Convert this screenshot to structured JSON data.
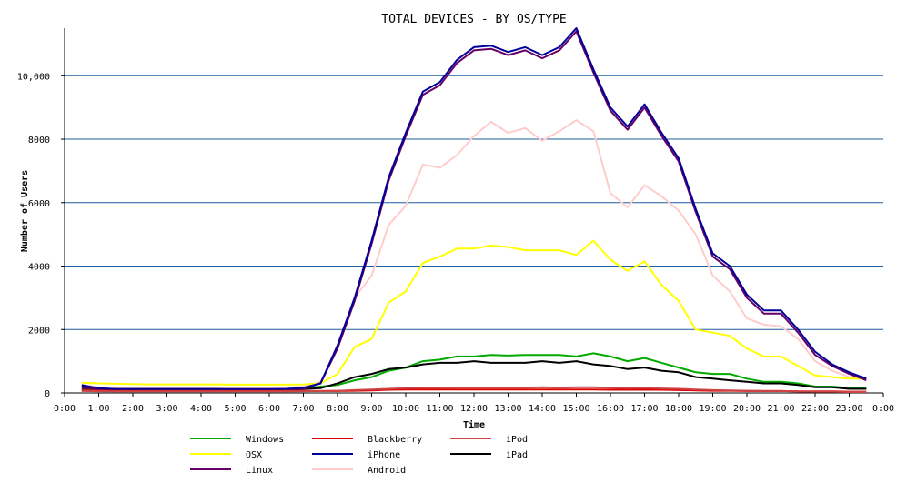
{
  "chart_data": {
    "type": "line",
    "title": "TOTAL DEVICES - BY OS/TYPE",
    "xlabel": "Time",
    "ylabel": "Number of Users",
    "ylim": [
      0,
      11500
    ],
    "y_ticks": [
      0,
      2000,
      4000,
      6000,
      8000,
      10000
    ],
    "y_tick_labels": [
      "0",
      "2000",
      "4000",
      "6000",
      "8000",
      "10,000"
    ],
    "x_tick_labels": [
      "0:00",
      "1:00",
      "2:00",
      "3:00",
      "4:00",
      "5:00",
      "6:00",
      "7:00",
      "8:00",
      "9:00",
      "10:00",
      "11:00",
      "12:00",
      "13:00",
      "14:00",
      "15:00",
      "16:00",
      "17:00",
      "18:00",
      "19:00",
      "20:00",
      "21:00",
      "22:00",
      "23:00",
      "0:00"
    ],
    "xlim": [
      0,
      24
    ],
    "grid": "horizontal",
    "legend_position": "bottom",
    "x": [
      0.5,
      1,
      1.5,
      2,
      2.5,
      3,
      3.5,
      4,
      4.5,
      5,
      5.5,
      6,
      6.5,
      7,
      7.5,
      8,
      8.5,
      9,
      9.5,
      10,
      10.5,
      11,
      11.5,
      12,
      12.5,
      13,
      13.5,
      14,
      14.5,
      15,
      15.5,
      16,
      16.5,
      17,
      17.5,
      18,
      18.5,
      19,
      19.5,
      20,
      20.5,
      21,
      21.5,
      22,
      22.5,
      23,
      23.5
    ],
    "series": [
      {
        "name": "Windows",
        "color": "#00aa00",
        "values": [
          100,
          90,
          80,
          80,
          80,
          80,
          90,
          90,
          90,
          90,
          90,
          100,
          100,
          120,
          200,
          250,
          400,
          500,
          700,
          800,
          1000,
          1050,
          1150,
          1150,
          1200,
          1180,
          1200,
          1200,
          1200,
          1150,
          1250,
          1150,
          1000,
          1100,
          950,
          800,
          650,
          600,
          600,
          450,
          350,
          350,
          300,
          200,
          200,
          150,
          150
        ]
      },
      {
        "name": "Blackberry",
        "color": "#dd0000",
        "values": [
          80,
          70,
          60,
          60,
          60,
          60,
          60,
          60,
          60,
          60,
          60,
          60,
          60,
          60,
          60,
          60,
          70,
          80,
          100,
          110,
          110,
          110,
          110,
          110,
          110,
          110,
          110,
          110,
          110,
          110,
          110,
          100,
          100,
          100,
          100,
          90,
          80,
          70,
          70,
          60,
          60,
          60,
          50,
          50,
          50,
          40,
          40
        ]
      },
      {
        "name": "iPod",
        "color": "#cc4444",
        "values": [
          60,
          55,
          50,
          50,
          50,
          50,
          50,
          50,
          50,
          50,
          50,
          50,
          50,
          55,
          60,
          70,
          90,
          110,
          130,
          150,
          160,
          160,
          170,
          170,
          170,
          170,
          170,
          180,
          170,
          180,
          180,
          160,
          150,
          160,
          140,
          130,
          110,
          90,
          80,
          70,
          60,
          60,
          50,
          40,
          40,
          30,
          30
        ]
      },
      {
        "name": "OSX",
        "color": "#ffff00",
        "values": [
          320,
          300,
          290,
          280,
          270,
          270,
          270,
          270,
          270,
          260,
          260,
          260,
          260,
          270,
          300,
          600,
          1450,
          1700,
          2850,
          3200,
          4100,
          4300,
          4550,
          4550,
          4650,
          4600,
          4500,
          4500,
          4500,
          4350,
          4800,
          4200,
          3850,
          4150,
          3400,
          2900,
          2000,
          1900,
          1800,
          1400,
          1150,
          1150,
          850,
          550,
          500,
          450,
          450
        ]
      },
      {
        "name": "iPhone",
        "color": "#000099",
        "values": [
          250,
          150,
          120,
          120,
          120,
          120,
          120,
          120,
          120,
          120,
          120,
          120,
          130,
          160,
          300,
          1500,
          3000,
          4800,
          6800,
          8200,
          9500,
          9800,
          10500,
          10900,
          10950,
          10750,
          10900,
          10650,
          10900,
          11500,
          10200,
          9000,
          8400,
          9100,
          8200,
          7400,
          5800,
          4400,
          4000,
          3100,
          2600,
          2600,
          2000,
          1300,
          900,
          650,
          450
        ]
      },
      {
        "name": "iPad",
        "color": "#000000",
        "values": [
          200,
          140,
          120,
          120,
          120,
          120,
          120,
          120,
          120,
          110,
          110,
          110,
          110,
          120,
          150,
          300,
          500,
          600,
          750,
          800,
          900,
          950,
          950,
          1000,
          950,
          950,
          950,
          1000,
          950,
          1000,
          900,
          850,
          750,
          800,
          700,
          650,
          500,
          450,
          400,
          350,
          300,
          300,
          250,
          180,
          180,
          130,
          130
        ]
      },
      {
        "name": "Linux",
        "color": "#660066",
        "values": [
          150,
          120,
          100,
          100,
          100,
          100,
          100,
          100,
          100,
          100,
          100,
          100,
          110,
          130,
          300,
          1400,
          2900,
          4700,
          6700,
          8100,
          9400,
          9700,
          10400,
          10800,
          10850,
          10650,
          10800,
          10550,
          10800,
          11400,
          10100,
          8900,
          8300,
          9000,
          8100,
          7300,
          5700,
          4300,
          3900,
          3000,
          2500,
          2500,
          1900,
          1200,
          850,
          600,
          400
        ]
      },
      {
        "name": "Android",
        "color": "#ffcccc",
        "values": [
          250,
          180,
          150,
          150,
          150,
          150,
          150,
          150,
          150,
          150,
          150,
          150,
          160,
          200,
          350,
          1400,
          3000,
          3700,
          5300,
          5900,
          7200,
          7100,
          7500,
          8100,
          8550,
          8200,
          8350,
          7950,
          8250,
          8600,
          8250,
          6300,
          5850,
          6550,
          6200,
          5750,
          5000,
          3700,
          3200,
          2350,
          2150,
          2100,
          1700,
          1000,
          700,
          500,
          450
        ]
      }
    ],
    "legend": [
      {
        "name": "Windows",
        "color": "#00aa00"
      },
      {
        "name": "Blackberry",
        "color": "#dd0000"
      },
      {
        "name": "iPod",
        "color": "#cc4444"
      },
      {
        "name": "OSX",
        "color": "#ffff00"
      },
      {
        "name": "iPhone",
        "color": "#000099"
      },
      {
        "name": "iPad",
        "color": "#000000"
      },
      {
        "name": "Linux",
        "color": "#660066"
      },
      {
        "name": "Android",
        "color": "#ffcccc"
      }
    ]
  }
}
